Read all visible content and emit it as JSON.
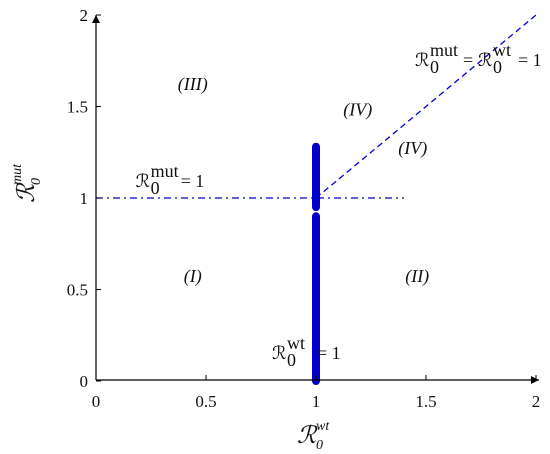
{
  "chart_data": {
    "type": "line",
    "title": "",
    "xlim": [
      0,
      2
    ],
    "ylim": [
      0,
      2
    ],
    "x_ticks": [
      "0",
      "0.5",
      "1",
      "1.5",
      "2"
    ],
    "y_ticks": [
      "0",
      "0.5",
      "1",
      "1.5",
      "2"
    ],
    "xlabel": {
      "main": "ℛ",
      "sup": "wt",
      "sub": "0"
    },
    "ylabel": {
      "main": "ℛ",
      "sup": "mut",
      "sub": "0"
    },
    "colors": {
      "axis": "#000000",
      "series": "#0000cc"
    },
    "series": [
      {
        "style": "thick-solid",
        "points": [
          [
            1,
            0
          ],
          [
            1,
            0.9
          ]
        ]
      },
      {
        "style": "thick-solid",
        "points": [
          [
            1,
            0.95
          ],
          [
            1,
            1.28
          ]
        ]
      },
      {
        "style": "dash-dot",
        "points": [
          [
            0,
            1
          ],
          [
            1.4,
            1
          ]
        ]
      },
      {
        "style": "dashed",
        "points": [
          [
            1,
            1
          ],
          [
            2,
            2
          ]
        ]
      }
    ],
    "regions": [
      {
        "label": "(I)",
        "x": 0.44,
        "y": 0.54
      },
      {
        "label": "(II)",
        "x": 1.46,
        "y": 0.54
      },
      {
        "label": "(III)",
        "x": 0.44,
        "y": 1.59
      },
      {
        "label": "(IV)",
        "x": 1.19,
        "y": 1.45
      },
      {
        "label": "(IV)",
        "x": 1.44,
        "y": 1.24
      }
    ],
    "annotations": [
      {
        "kind": "single",
        "main": "ℛ",
        "sup": "mut",
        "sub": "0",
        "rhs": "= 1",
        "x": 0.18,
        "y": 1.06
      },
      {
        "kind": "single",
        "main": "ℛ",
        "sup": "wt",
        "sub": "0",
        "rhs": "= 1",
        "x": 0.8,
        "y": 0.12
      },
      {
        "kind": "double",
        "left_main": "ℛ",
        "left_sup": "mut",
        "left_sub": "0",
        "mid": "=",
        "right_main": "ℛ",
        "right_sup": "wt",
        "right_sub": "0",
        "rhs": "= 1",
        "x": 1.45,
        "y": 1.72
      }
    ]
  }
}
